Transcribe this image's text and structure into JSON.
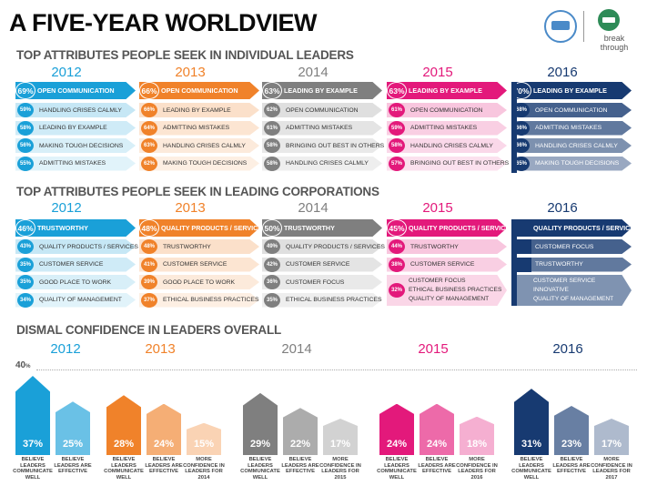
{
  "title": "A FIVE-YEAR WORLDVIEW",
  "logo2_text": "break through",
  "colors": {
    "2012": "#1aa0d8",
    "2013": "#f0822a",
    "2014": "#7f7f7f",
    "2015": "#e3197b",
    "2016": "#173a71"
  },
  "section1": {
    "title": "TOP ATTRIBUTES PEOPLE SEEK IN INDIVIDUAL LEADERS",
    "columns": [
      {
        "year": "2012",
        "top_pct": "69%",
        "top_label": "OPEN COMMUNICATION",
        "rows": [
          {
            "pct": "59%",
            "label": "HANDLING CRISES CALMLY"
          },
          {
            "pct": "58%",
            "label": "LEADING BY EXAMPLE"
          },
          {
            "pct": "56%",
            "label": "MAKING TOUGH DECISIONS"
          },
          {
            "pct": "55%",
            "label": "ADMITTING MISTAKES"
          }
        ]
      },
      {
        "year": "2013",
        "top_pct": "66%",
        "top_label": "OPEN COMMUNICATION",
        "rows": [
          {
            "pct": "66%",
            "label": "LEADING BY EXAMPLE"
          },
          {
            "pct": "64%",
            "label": "ADMITTING MISTAKES"
          },
          {
            "pct": "63%",
            "label": "HANDLING CRISES CALMLY"
          },
          {
            "pct": "62%",
            "label": "MAKING TOUGH DECISIONS"
          }
        ]
      },
      {
        "year": "2014",
        "top_pct": "63%",
        "top_label": "LEADING BY EXAMPLE",
        "rows": [
          {
            "pct": "62%",
            "label": "OPEN COMMUNICATION"
          },
          {
            "pct": "61%",
            "label": "ADMITTING MISTAKES"
          },
          {
            "pct": "58%",
            "label": "BRINGING OUT BEST IN OTHERS"
          },
          {
            "pct": "58%",
            "label": "HANDLING CRISES CALMLY"
          }
        ]
      },
      {
        "year": "2015",
        "top_pct": "63%",
        "top_label": "LEADING BY EXAMPLE",
        "rows": [
          {
            "pct": "61%",
            "label": "OPEN COMMUNICATION"
          },
          {
            "pct": "59%",
            "label": "ADMITTING MISTAKES"
          },
          {
            "pct": "58%",
            "label": "HANDLING CRISES CALMLY"
          },
          {
            "pct": "57%",
            "label": "BRINGING OUT BEST IN OTHERS"
          }
        ]
      },
      {
        "year": "2016",
        "top_pct": "70%",
        "top_label": "LEADING BY EXAMPLE",
        "rows": [
          {
            "pct": "68%",
            "label": "OPEN COMMUNICATION"
          },
          {
            "pct": "66%",
            "label": "ADMITTING MISTAKES"
          },
          {
            "pct": "66%",
            "label": "HANDLING CRISES CALMLY"
          },
          {
            "pct": "65%",
            "label": "MAKING TOUGH DECISIONS"
          }
        ]
      }
    ]
  },
  "section2": {
    "title": "TOP ATTRIBUTES PEOPLE SEEK IN LEADING CORPORATIONS",
    "columns": [
      {
        "year": "2012",
        "top_pct": "46%",
        "top_label": "TRUSTWORTHY",
        "rows": [
          {
            "pct": "43%",
            "label": "QUALITY PRODUCTS / SERVICES"
          },
          {
            "pct": "35%",
            "label": "CUSTOMER SERVICE"
          },
          {
            "pct": "35%",
            "label": "GOOD PLACE TO WORK"
          },
          {
            "pct": "34%",
            "label": "QUALITY OF MANAGEMENT"
          }
        ]
      },
      {
        "year": "2013",
        "top_pct": "48%",
        "top_label": "QUALITY PRODUCTS / SERVICES",
        "rows": [
          {
            "pct": "48%",
            "label": "TRUSTWORTHY"
          },
          {
            "pct": "41%",
            "label": "CUSTOMER SERVICE"
          },
          {
            "pct": "39%",
            "label": "GOOD PLACE TO WORK"
          },
          {
            "pct": "37%",
            "label": "ETHICAL BUSINESS PRACTICES"
          }
        ]
      },
      {
        "year": "2014",
        "top_pct": "50%",
        "top_label": "TRUSTWORTHY",
        "rows": [
          {
            "pct": "49%",
            "label": "QUALITY PRODUCTS / SERVICES"
          },
          {
            "pct": "42%",
            "label": "CUSTOMER SERVICE"
          },
          {
            "pct": "36%",
            "label": "CUSTOMER FOCUS"
          },
          {
            "pct": "35%",
            "label": "ETHICAL BUSINESS PRACTICES"
          }
        ]
      },
      {
        "year": "2015",
        "top_pct": "45%",
        "top_label": "QUALITY PRODUCTS / SERVICES",
        "rows": [
          {
            "pct": "44%",
            "label": "TRUSTWORTHY"
          },
          {
            "pct": "38%",
            "label": "CUSTOMER SERVICE"
          }
        ],
        "merged_pct": "32%",
        "merged_labels": [
          "CUSTOMER FOCUS",
          "ETHICAL BUSINESS PRACTICES",
          "QUALITY OF MANAGEMENT"
        ]
      },
      {
        "year": "2016",
        "top_label": "QUALITY PRODUCTS / SERVICES",
        "rows": [
          {
            "label": "CUSTOMER FOCUS"
          },
          {
            "label": "TRUSTWORTHY"
          }
        ],
        "merged_labels": [
          "CUSTOMER SERVICE",
          "INNOVATIVE",
          "QUALITY OF MANAGEMENT"
        ]
      }
    ]
  },
  "section3": {
    "title": "DISMAL CONFIDENCE IN LEADERS OVERALL",
    "axis_label": "40",
    "axis_unit": "%",
    "groups": [
      {
        "year": "2012",
        "bars": [
          {
            "value": "37%",
            "caption": "BELIEVE LEADERS COMMUNICATE WELL",
            "v": 37
          },
          {
            "value": "25%",
            "caption": "BELIEVE LEADERS ARE EFFECTIVE",
            "v": 25
          }
        ]
      },
      {
        "year": "2013",
        "bars": [
          {
            "value": "28%",
            "caption": "BELIEVE LEADERS COMMUNICATE WELL",
            "v": 28
          },
          {
            "value": "24%",
            "caption": "BELIEVE LEADERS ARE EFFECTIVE",
            "v": 24
          },
          {
            "value": "15%",
            "caption": "MORE CONFIDENCE IN LEADERS FOR 2014",
            "v": 15
          }
        ]
      },
      {
        "year": "2014",
        "bars": [
          {
            "value": "29%",
            "caption": "BELIEVE LEADERS COMMUNICATE WELL",
            "v": 29
          },
          {
            "value": "22%",
            "caption": "BELIEVE LEADERS ARE EFFECTIVE",
            "v": 22
          },
          {
            "value": "17%",
            "caption": "MORE CONFIDENCE IN LEADERS FOR 2015",
            "v": 17
          }
        ]
      },
      {
        "year": "2015",
        "bars": [
          {
            "value": "24%",
            "caption": "BELIEVE LEADERS COMMUNICATE WELL",
            "v": 24
          },
          {
            "value": "24%",
            "caption": "BELIEVE LEADERS ARE EFFECTIVE",
            "v": 24
          },
          {
            "value": "18%",
            "caption": "MORE CONFIDENCE IN LEADERS FOR 2016",
            "v": 18
          }
        ]
      },
      {
        "year": "2016",
        "bars": [
          {
            "value": "31%",
            "caption": "BELIEVE LEADERS COMMUNICATE WELL",
            "v": 31
          },
          {
            "value": "23%",
            "caption": "BELIEVE LEADERS ARE EFFECTIVE",
            "v": 23
          },
          {
            "value": "17%",
            "caption": "MORE CONFIDENCE IN LEADERS FOR 2017",
            "v": 17
          }
        ]
      }
    ]
  }
}
